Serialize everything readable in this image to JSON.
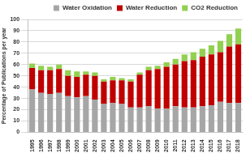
{
  "chart_data": {
    "type": "bar",
    "stacked": true,
    "grid": true,
    "legend": "top",
    "y_label": "Percentage of Publications per year",
    "categories": [
      "1995",
      "1996",
      "1997",
      "1998",
      "1999",
      "2000",
      "2001",
      "2002",
      "2003",
      "2004",
      "2005",
      "2006",
      "2007",
      "2008",
      "2009",
      "2010",
      "2011",
      "2012",
      "2013",
      "2014",
      "2015",
      "2016",
      "2017",
      "2018"
    ],
    "series": [
      {
        "name": "Water Oxidation",
        "color": "#a6a6a6",
        "values": [
          38,
          35,
          34,
          35,
          32,
          31,
          32,
          29,
          25,
          26,
          25,
          22,
          22,
          23,
          21,
          21,
          23,
          22,
          22,
          23,
          24,
          27,
          26,
          26
        ]
      },
      {
        "name": "Water Reduction",
        "color": "#c00000",
        "values": [
          19,
          20,
          21,
          21,
          18,
          18,
          19,
          21,
          20,
          20,
          21,
          23,
          29,
          32,
          35,
          37,
          37,
          41,
          42,
          44,
          45,
          44,
          50,
          52
        ]
      },
      {
        "name": "CO2 Reduction",
        "color": "#92d050",
        "values": [
          4,
          4,
          3,
          4,
          5,
          5,
          3,
          3,
          2,
          3,
          2,
          2,
          2,
          3,
          3,
          4,
          5,
          6,
          7,
          7,
          8,
          10,
          11,
          14
        ]
      }
    ],
    "ylim": [
      0,
      100
    ],
    "yticks": [
      0,
      10,
      20,
      30,
      40,
      50,
      60,
      70,
      80,
      90,
      100
    ]
  }
}
